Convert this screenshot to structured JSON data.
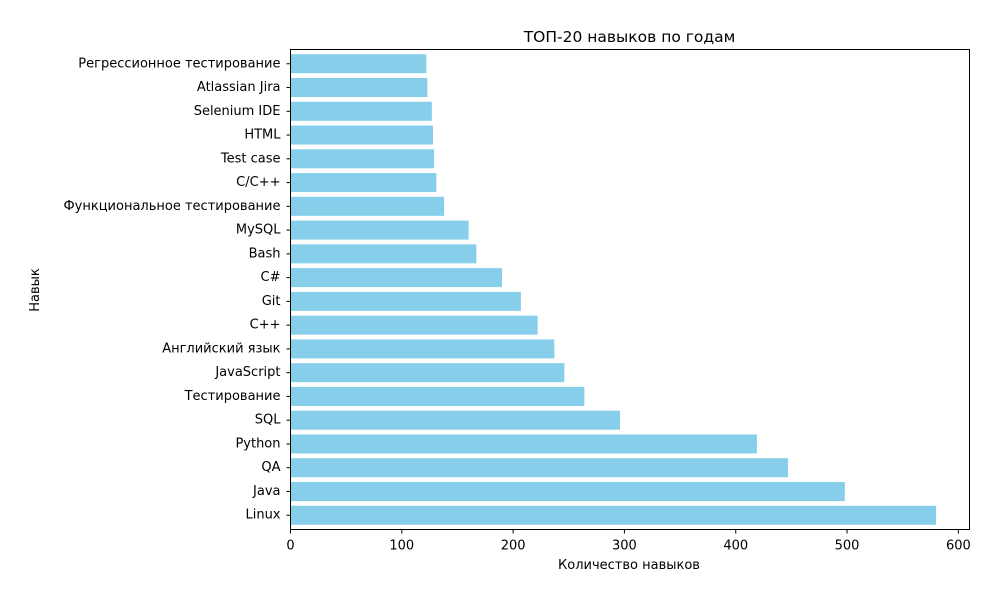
{
  "chart_data": {
    "type": "bar",
    "orientation": "horizontal",
    "title": "ТОП-20 навыков по годам",
    "xlabel": "Количество навыков",
    "ylabel": "Навык",
    "xlim": [
      0,
      610
    ],
    "xticks": [
      0,
      100,
      200,
      300,
      400,
      500,
      600
    ],
    "bar_color": "#87ceeb",
    "grid": false,
    "categories": [
      "Linux",
      "Java",
      "QA",
      "Python",
      "SQL",
      "Тестирование",
      "JavaScript",
      "Английский язык",
      "C++",
      "Git",
      "C#",
      "Bash",
      "MySQL",
      "Функциональное тестирование",
      "C/C++",
      "Test case",
      "HTML",
      "Selenium IDE",
      "Atlassian Jira",
      "Регрессионное тестирование"
    ],
    "values": [
      580,
      498,
      447,
      419,
      296,
      264,
      246,
      237,
      222,
      207,
      190,
      167,
      160,
      138,
      131,
      129,
      128,
      127,
      123,
      122
    ]
  }
}
